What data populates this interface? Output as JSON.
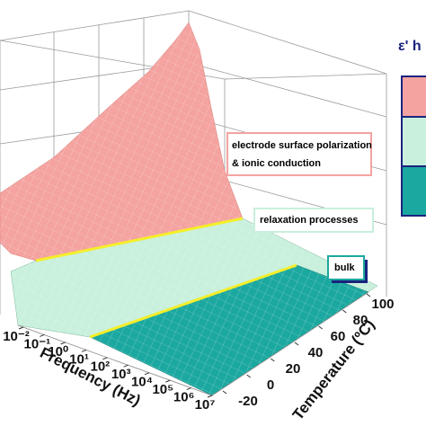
{
  "chart_data": {
    "type": "surface3d",
    "xlabel": "Frequency (Hz)",
    "ylabel": "Temperature (ºC)",
    "xscale": "log",
    "xlim": [
      0.01,
      10000000
    ],
    "xticks": [
      {
        "value": 0.01,
        "label": "10⁻²"
      },
      {
        "value": 0.1,
        "label": "10⁻¹"
      },
      {
        "value": 1,
        "label": "10⁰"
      },
      {
        "value": 10,
        "label": "10¹"
      },
      {
        "value": 100,
        "label": "10²"
      },
      {
        "value": 1000,
        "label": "10³"
      },
      {
        "value": 10000,
        "label": "10⁴"
      },
      {
        "value": 100000,
        "label": "10⁵"
      },
      {
        "value": 1000000,
        "label": "10⁶"
      },
      {
        "value": 10000000,
        "label": "10⁷"
      }
    ],
    "ylim": [
      -20,
      100
    ],
    "yticks": [
      -20,
      0,
      20,
      40,
      60,
      80,
      100
    ],
    "legend_title": "ε' h",
    "regions": [
      {
        "name": "electrode surface polarization",
        "name2": "& ionic conduction",
        "color": "#f4a3a0"
      },
      {
        "name": "relaxation processes",
        "color": "#c8f0dc"
      },
      {
        "name": "bulk",
        "color": "#1ba8a0"
      }
    ]
  }
}
